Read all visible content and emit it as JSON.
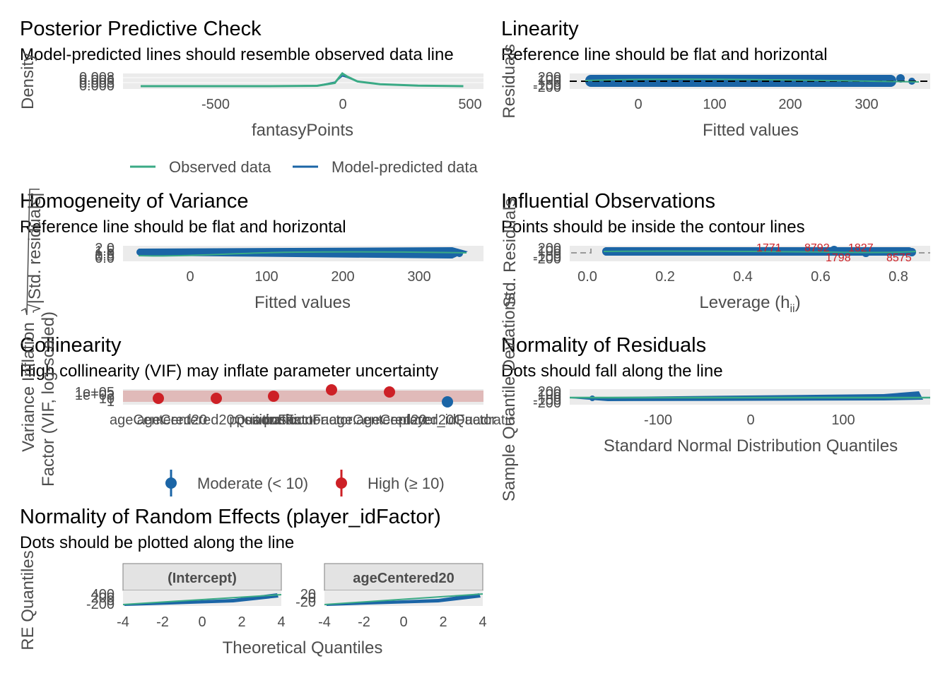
{
  "colors": {
    "observed": "#3aaa85",
    "predicted": "#1b65a6",
    "high": "#cd2026",
    "moderate": "#1b65a6",
    "panel": "#ebebeb",
    "band": "#dcaaa8"
  },
  "chart_data": [
    {
      "id": "ppc",
      "type": "line",
      "title": "Posterior Predictive Check",
      "subtitle": "Model-predicted lines should resemble observed data line",
      "xlabel": "fantasyPoints",
      "ylabel": "Density",
      "xlim": [
        -870,
        560
      ],
      "xticks": [
        "-500",
        "0",
        "500"
      ],
      "yticks": [
        "0.000",
        "0.003",
        "0.006",
        "0.008"
      ],
      "legend": {
        "position": "bottom",
        "items": [
          "Observed data",
          "Model-predicted data"
        ]
      },
      "series": [
        {
          "name": "Observed data",
          "x": [
            -800,
            -300,
            -100,
            -30,
            0,
            20,
            60,
            150,
            300,
            480
          ],
          "y": [
            0,
            0,
            0.0002,
            0.002,
            0.008,
            0.006,
            0.003,
            0.0012,
            0.0003,
            0
          ]
        },
        {
          "name": "Model-predicted data",
          "x": [
            -800,
            -300,
            -100,
            -30,
            0,
            20,
            60,
            150,
            300,
            480
          ],
          "y": [
            0,
            0,
            0.0003,
            0.0025,
            0.0065,
            0.0055,
            0.003,
            0.0013,
            0.0003,
            0
          ]
        }
      ]
    },
    {
      "id": "linearity",
      "type": "scatter",
      "title": "Linearity",
      "subtitle": "Reference line should be flat and horizontal",
      "xlabel": "Fitted values",
      "ylabel": "Residuals",
      "xlim": [
        -90,
        380
      ],
      "xticks": [
        "0",
        "100",
        "200",
        "300"
      ],
      "yticks": [
        "-200",
        "-100",
        "0",
        "100",
        "200"
      ],
      "x_range_points": [
        -60,
        360
      ]
    },
    {
      "id": "homogeneity",
      "type": "scatter",
      "title": "Homogeneity of Variance",
      "subtitle": "Reference line should be flat and horizontal",
      "xlabel": "Fitted values",
      "ylabel": "√|Std. residuals|",
      "xlim": [
        -90,
        380
      ],
      "xticks": [
        "0",
        "100",
        "200",
        "300"
      ],
      "yticks": [
        "0.0",
        "0.5",
        "1.0",
        "1.5",
        "2.0"
      ]
    },
    {
      "id": "influential",
      "type": "scatter",
      "title": "Influential Observations",
      "subtitle": "Points should be inside the contour lines",
      "xlabel": "Leverage (h",
      "xlabel_sub": "ii",
      "xlabel_end": ")",
      "ylabel": "Std. Residuals",
      "xlim": [
        -0.04,
        0.88
      ],
      "xticks": [
        "0.0",
        "0.2",
        "0.4",
        "0.6",
        "0.8"
      ],
      "yticks": [
        "-200",
        "-100",
        "0",
        "100",
        "200"
      ],
      "labels": [
        "1771",
        "8792",
        "1827",
        "1798",
        "8575"
      ]
    },
    {
      "id": "collinearity",
      "type": "scatter",
      "title": "Collinearity",
      "subtitle": "High collinearity (VIF) may inflate parameter uncertainty",
      "xlabel": "",
      "ylabel": "Variance Inflation\nFactor (VIF, log-scaled)",
      "categories": [
        "ageCentered20",
        "ageCentered20Quadratic",
        "positionFactor",
        "positionFactor:ageCentered20",
        "positionFactor:ageCentered20Quadratic",
        "player_idFactor"
      ],
      "values": [
        12,
        11,
        25,
        60,
        45,
        2
      ],
      "yticks": [
        "1",
        "10",
        "1e+03",
        "1e+05"
      ],
      "legend": {
        "position": "bottom",
        "items": [
          "Moderate (< 10)",
          "High (≥ 10)"
        ]
      }
    },
    {
      "id": "normres",
      "type": "scatter",
      "title": "Normality of Residuals",
      "subtitle": "Dots should fall along the line",
      "xlabel": "Standard Normal Distribution Quantiles",
      "ylabel": "Sample Quantile Deviations",
      "xlim": [
        -200,
        180
      ],
      "xticks": [
        "-100",
        "0",
        "100"
      ],
      "yticks": [
        "-200",
        "-100",
        "0",
        "100",
        "200"
      ]
    },
    {
      "id": "randeff",
      "type": "scatter",
      "title": "Normality of Random Effects (player_idFactor)",
      "subtitle": "Dots should be plotted along the line",
      "xlabel": "Theoretical Quantiles",
      "ylabel": "RE Quantiles",
      "xticks": [
        "-4",
        "-2",
        "0",
        "2",
        "4"
      ],
      "facets": [
        {
          "name": "(Intercept)",
          "yticks": [
            "-200",
            "0",
            "200",
            "400"
          ]
        },
        {
          "name": "ageCentered20",
          "yticks": [
            "-20",
            "0",
            "20"
          ]
        }
      ]
    }
  ]
}
